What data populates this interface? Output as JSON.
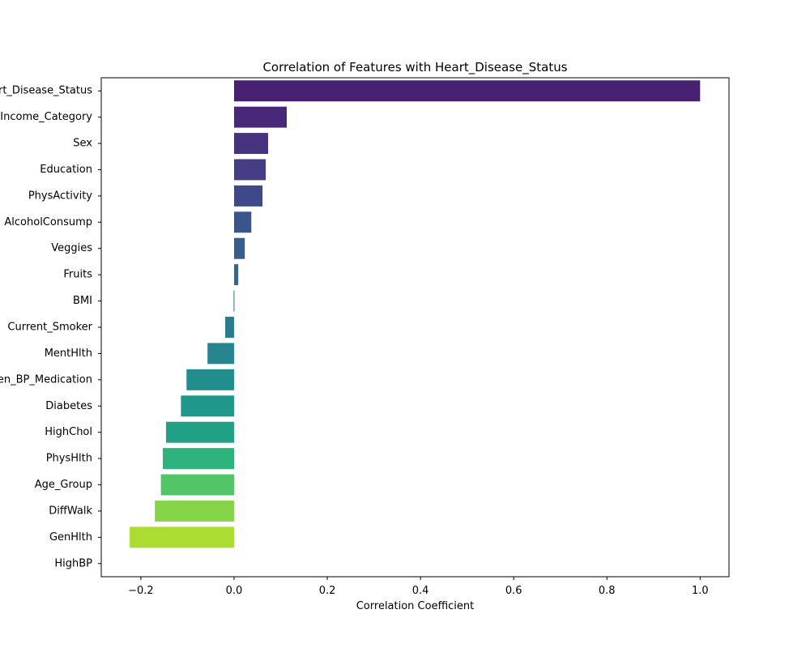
{
  "chart_data": {
    "type": "bar",
    "orientation": "horizontal",
    "title": "Correlation of Features with Heart_Disease_Status",
    "xlabel": "Correlation Coefficient",
    "ylabel": "",
    "xlim": [
      -0.285,
      1.062
    ],
    "x_ticks": [
      -0.2,
      0.0,
      0.2,
      0.4,
      0.6,
      0.8,
      1.0
    ],
    "x_tick_labels": [
      "−0.2",
      "0.0",
      "0.2",
      "0.4",
      "0.6",
      "0.8",
      "1.0"
    ],
    "grid": false,
    "colormap": "viridis",
    "categories": [
      "Heart_Disease_Status",
      "Income_Category",
      "Sex",
      "Education",
      "PhysActivity",
      "AlcoholConsump",
      "Veggies",
      "Fruits",
      "BMI",
      "Current_Smoker",
      "MentHlth",
      "Taken_BP_Medication",
      "Diabetes",
      "HighChol",
      "PhysHlth",
      "Age_Group",
      "DiffWalk",
      "GenHlth",
      "HighBP"
    ],
    "values": [
      1.0,
      0.113,
      0.073,
      0.068,
      0.061,
      0.037,
      0.023,
      0.009,
      -0.001,
      -0.019,
      -0.057,
      -0.102,
      -0.114,
      -0.146,
      -0.153,
      -0.157,
      -0.17,
      -0.224,
      0.0
    ],
    "colors": [
      "#482173",
      "#482979",
      "#46337f",
      "#433e85",
      "#3e4989",
      "#3a548c",
      "#355e8d",
      "#31688e",
      "#2d718e",
      "#297b8e",
      "#25848e",
      "#228d8d",
      "#1f978b",
      "#21a085",
      "#2eb37c",
      "#52c569",
      "#86d549",
      "#aadc32",
      "#c2df23"
    ]
  }
}
